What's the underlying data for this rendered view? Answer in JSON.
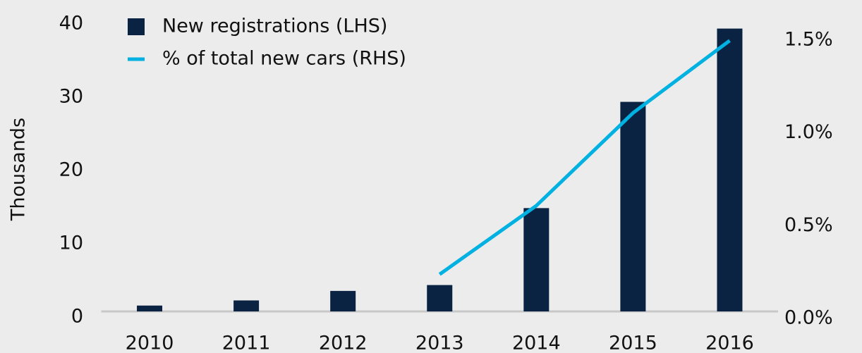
{
  "chart_data": {
    "type": "bar",
    "y_axis_label": "Thousands",
    "categories": [
      "2010",
      "2011",
      "2012",
      "2013",
      "2014",
      "2015",
      "2016"
    ],
    "series": [
      {
        "name": "New registrations (LHS)",
        "type": "bar",
        "color": "#0b2343",
        "values": [
          0.8,
          1.5,
          2.8,
          3.6,
          14.1,
          28.6,
          38.6
        ]
      },
      {
        "name": "% of total new cars (RHS)",
        "type": "line",
        "axis": "y2",
        "color": "#00b1e1",
        "values": [
          null,
          null,
          null,
          0.2,
          0.57,
          1.07,
          1.46
        ]
      }
    ],
    "ylim": [
      0,
      40
    ],
    "yticks": [
      0,
      10,
      20,
      30,
      40
    ],
    "y2lim": [
      0,
      1.58
    ],
    "y2ticks": [
      {
        "value": 0,
        "label": "0.0%"
      },
      {
        "value": 0.5,
        "label": "0.5%"
      },
      {
        "value": 1,
        "label": "1.0%"
      },
      {
        "value": 1.5,
        "label": "1.5%"
      }
    ],
    "legend": "top-left"
  }
}
